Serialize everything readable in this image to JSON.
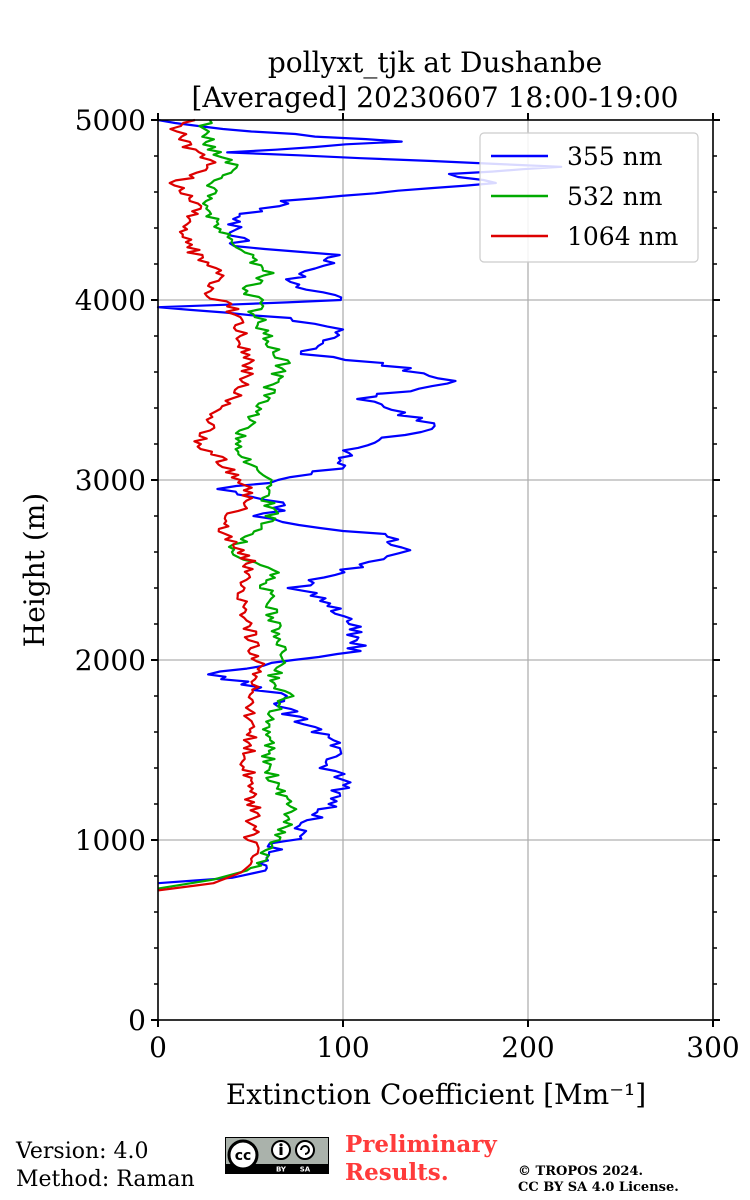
{
  "chart_data": {
    "type": "line",
    "title": "pollyxt_tjk at Dushanbe",
    "subtitle": "[Averaged] 20230607 18:00-19:00",
    "xlabel": "Extinction Coefficient [Mm⁻¹]",
    "ylabel": "Height (m)",
    "xlim": [
      0,
      300
    ],
    "ylim": [
      0,
      5000
    ],
    "xticks": [
      0,
      100,
      200,
      300
    ],
    "yticks": [
      0,
      1000,
      2000,
      3000,
      4000,
      5000
    ],
    "grid": true,
    "legend_position": "top-right",
    "series": [
      {
        "name": "355 nm",
        "color": "#0000ff",
        "points": [
          [
            0,
            760
          ],
          [
            40,
            790
          ],
          [
            58,
            830
          ],
          [
            62,
            900
          ],
          [
            66,
            980
          ],
          [
            80,
            1020
          ],
          [
            76,
            1080
          ],
          [
            95,
            1200
          ],
          [
            100,
            1350
          ],
          [
            88,
            1400
          ],
          [
            102,
            1480
          ],
          [
            88,
            1600
          ],
          [
            72,
            1700
          ],
          [
            65,
            1800
          ],
          [
            45,
            1880
          ],
          [
            30,
            1920
          ],
          [
            68,
            2000
          ],
          [
            108,
            2050
          ],
          [
            105,
            2200
          ],
          [
            95,
            2300
          ],
          [
            75,
            2400
          ],
          [
            120,
            2560
          ],
          [
            134,
            2610
          ],
          [
            120,
            2700
          ],
          [
            75,
            2750
          ],
          [
            55,
            2800
          ],
          [
            72,
            2860
          ],
          [
            30,
            2950
          ],
          [
            70,
            3000
          ],
          [
            100,
            3080
          ],
          [
            100,
            3150
          ],
          [
            130,
            3250
          ],
          [
            150,
            3300
          ],
          [
            110,
            3450
          ],
          [
            160,
            3550
          ],
          [
            120,
            3650
          ],
          [
            80,
            3700
          ],
          [
            100,
            3820
          ],
          [
            70,
            3900
          ],
          [
            0,
            3960
          ],
          [
            100,
            4000
          ],
          [
            70,
            4100
          ],
          [
            100,
            4250
          ],
          [
            45,
            4300
          ],
          [
            40,
            4450
          ],
          [
            70,
            4550
          ],
          [
            180,
            4650
          ],
          [
            160,
            4700
          ],
          [
            220,
            4740
          ],
          [
            40,
            4820
          ],
          [
            130,
            4880
          ],
          [
            30,
            4950
          ],
          [
            0,
            5000
          ]
        ]
      },
      {
        "name": "532 nm",
        "color": "#00aa00",
        "points": [
          [
            0,
            730
          ],
          [
            30,
            780
          ],
          [
            48,
            830
          ],
          [
            58,
            900
          ],
          [
            62,
            1000
          ],
          [
            70,
            1100
          ],
          [
            72,
            1200
          ],
          [
            62,
            1300
          ],
          [
            60,
            1450
          ],
          [
            58,
            1600
          ],
          [
            62,
            1700
          ],
          [
            70,
            1800
          ],
          [
            62,
            1900
          ],
          [
            70,
            2000
          ],
          [
            65,
            2100
          ],
          [
            62,
            2250
          ],
          [
            58,
            2400
          ],
          [
            62,
            2500
          ],
          [
            40,
            2600
          ],
          [
            48,
            2700
          ],
          [
            62,
            2800
          ],
          [
            58,
            2900
          ],
          [
            62,
            3000
          ],
          [
            48,
            3100
          ],
          [
            42,
            3200
          ],
          [
            52,
            3350
          ],
          [
            60,
            3500
          ],
          [
            68,
            3650
          ],
          [
            58,
            3800
          ],
          [
            52,
            3950
          ],
          [
            55,
            4000
          ],
          [
            45,
            4050
          ],
          [
            60,
            4150
          ],
          [
            48,
            4250
          ],
          [
            38,
            4350
          ],
          [
            30,
            4450
          ],
          [
            28,
            4550
          ],
          [
            30,
            4650
          ],
          [
            40,
            4750
          ],
          [
            28,
            4850
          ],
          [
            25,
            4950
          ],
          [
            28,
            5000
          ]
        ]
      },
      {
        "name": "1064 nm",
        "color": "#dd0000",
        "points": [
          [
            0,
            720
          ],
          [
            30,
            760
          ],
          [
            45,
            820
          ],
          [
            52,
            880
          ],
          [
            50,
            1000
          ],
          [
            52,
            1150
          ],
          [
            50,
            1300
          ],
          [
            48,
            1450
          ],
          [
            50,
            1600
          ],
          [
            48,
            1750
          ],
          [
            52,
            1850
          ],
          [
            55,
            1950
          ],
          [
            52,
            2050
          ],
          [
            48,
            2250
          ],
          [
            45,
            2400
          ],
          [
            50,
            2550
          ],
          [
            35,
            2700
          ],
          [
            40,
            2800
          ],
          [
            50,
            2900
          ],
          [
            45,
            3000
          ],
          [
            35,
            3100
          ],
          [
            22,
            3200
          ],
          [
            30,
            3350
          ],
          [
            45,
            3500
          ],
          [
            50,
            3650
          ],
          [
            45,
            3800
          ],
          [
            40,
            3950
          ],
          [
            25,
            4050
          ],
          [
            35,
            4150
          ],
          [
            20,
            4250
          ],
          [
            15,
            4350
          ],
          [
            18,
            4450
          ],
          [
            20,
            4550
          ],
          [
            10,
            4650
          ],
          [
            30,
            4750
          ],
          [
            15,
            4850
          ],
          [
            10,
            4950
          ],
          [
            20,
            5000
          ]
        ]
      }
    ]
  },
  "footer": {
    "version": "Version: 4.0",
    "method": "Method: Raman",
    "preliminary_line1": "Preliminary",
    "preliminary_line2": "Results.",
    "copyright_line1": "© TROPOS 2024.",
    "copyright_line2": "CC BY SA 4.0 License."
  },
  "license_logo": {
    "icon": "cc-by-sa-icon",
    "text": [
      "cc",
      "BY",
      "SA"
    ]
  }
}
